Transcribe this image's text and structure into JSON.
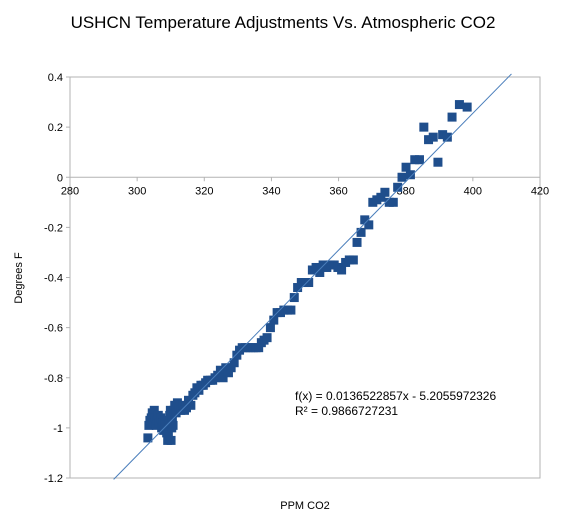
{
  "chart_data": {
    "type": "scatter",
    "title": "USHCN Temperature Adjustments Vs. Atmospheric CO2",
    "xlabel": "PPM CO2",
    "ylabel": "Degrees F",
    "xlim": [
      280,
      420
    ],
    "ylim": [
      -1.2,
      0.4
    ],
    "x_ticks": [
      280,
      300,
      320,
      340,
      360,
      380,
      400,
      420
    ],
    "y_ticks": [
      -1.2,
      -1,
      -0.8,
      -0.6,
      -0.4,
      -0.2,
      0,
      0.2,
      0.4
    ],
    "x_tick_labels": [
      "280",
      "300",
      "320",
      "340",
      "360",
      "380",
      "400",
      "420"
    ],
    "y_tick_labels": [
      "-1.2",
      "-1",
      "-0.8",
      "-0.6",
      "-0.4",
      "-0.2",
      "0",
      "0.2",
      "0.4"
    ],
    "x_axis_crosses_at_y": 0,
    "grid": false,
    "legend": "none",
    "marker": "square",
    "marker_color": "#1f4e8c",
    "trendline_color": "#4a7ebb",
    "trendline": {
      "slope": 0.0136522857,
      "intercept": -5.2055972326,
      "x_range": [
        293,
        411.5
      ]
    },
    "annotations": {
      "equation": "f(x) = 0.0136522857x - 5.2055972326",
      "r_squared": "R² = 0.9866727231"
    },
    "series": [
      {
        "points": [
          [
            303.2,
            -1.04
          ],
          [
            303.5,
            -0.99
          ],
          [
            303.8,
            -0.97
          ],
          [
            304.2,
            -0.96
          ],
          [
            304.5,
            -0.94
          ],
          [
            304.8,
            -0.98
          ],
          [
            305.1,
            -0.93
          ],
          [
            305.4,
            -0.96
          ],
          [
            305.7,
            -0.99
          ],
          [
            306.0,
            -0.97
          ],
          [
            306.3,
            -0.95
          ],
          [
            306.6,
            -0.98
          ],
          [
            307.0,
            -0.96
          ],
          [
            307.3,
            -1.0
          ],
          [
            307.6,
            -0.98
          ],
          [
            307.9,
            -1.01
          ],
          [
            308.2,
            -0.97
          ],
          [
            308.5,
            -0.99
          ],
          [
            308.8,
            -1.02
          ],
          [
            309.1,
            -1.05
          ],
          [
            309.3,
            -1.03
          ],
          [
            309.5,
            -0.98
          ],
          [
            309.7,
            -0.95
          ],
          [
            309.9,
            -0.93
          ],
          [
            310.1,
            -1.05
          ],
          [
            310.3,
            -1.0
          ],
          [
            310.5,
            -0.96
          ],
          [
            310.7,
            -0.99
          ],
          [
            310.9,
            -0.93
          ],
          [
            311.2,
            -0.91
          ],
          [
            311.6,
            -0.94
          ],
          [
            312.0,
            -0.9
          ],
          [
            312.5,
            -0.92
          ],
          [
            313.0,
            -0.93
          ],
          [
            313.6,
            -0.91
          ],
          [
            314.1,
            -0.93
          ],
          [
            314.7,
            -0.92
          ],
          [
            315.3,
            -0.89
          ],
          [
            316.0,
            -0.91
          ],
          [
            316.6,
            -0.87
          ],
          [
            317.2,
            -0.86
          ],
          [
            317.8,
            -0.84
          ],
          [
            318.4,
            -0.85
          ],
          [
            319.0,
            -0.83
          ],
          [
            319.7,
            -0.83
          ],
          [
            320.4,
            -0.82
          ],
          [
            321.0,
            -0.81
          ],
          [
            321.8,
            -0.81
          ],
          [
            322.5,
            -0.81
          ],
          [
            323.2,
            -0.8
          ],
          [
            324.0,
            -0.79
          ],
          [
            324.8,
            -0.77
          ],
          [
            325.6,
            -0.8
          ],
          [
            326.4,
            -0.76
          ],
          [
            327.2,
            -0.78
          ],
          [
            328.0,
            -0.76
          ],
          [
            328.9,
            -0.74
          ],
          [
            329.7,
            -0.71
          ],
          [
            330.5,
            -0.69
          ],
          [
            331.3,
            -0.68
          ],
          [
            332.2,
            -0.68
          ],
          [
            333.0,
            -0.68
          ],
          [
            333.8,
            -0.68
          ],
          [
            334.6,
            -0.68
          ],
          [
            335.4,
            -0.68
          ],
          [
            336.2,
            -0.68
          ],
          [
            337.0,
            -0.66
          ],
          [
            337.8,
            -0.65
          ],
          [
            338.7,
            -0.64
          ],
          [
            339.7,
            -0.6
          ],
          [
            340.7,
            -0.57
          ],
          [
            341.7,
            -0.54
          ],
          [
            342.7,
            -0.54
          ],
          [
            343.7,
            -0.53
          ],
          [
            344.8,
            -0.53
          ],
          [
            345.8,
            -0.53
          ],
          [
            346.8,
            -0.48
          ],
          [
            347.8,
            -0.44
          ],
          [
            348.9,
            -0.42
          ],
          [
            350.0,
            -0.42
          ],
          [
            351.1,
            -0.42
          ],
          [
            352.2,
            -0.37
          ],
          [
            353.3,
            -0.36
          ],
          [
            354.4,
            -0.38
          ],
          [
            355.4,
            -0.35
          ],
          [
            356.5,
            -0.36
          ],
          [
            357.6,
            -0.35
          ],
          [
            358.7,
            -0.35
          ],
          [
            359.8,
            -0.36
          ],
          [
            360.9,
            -0.37
          ],
          [
            362.1,
            -0.34
          ],
          [
            363.2,
            -0.33
          ],
          [
            364.4,
            -0.33
          ],
          [
            365.5,
            -0.26
          ],
          [
            366.7,
            -0.22
          ],
          [
            367.8,
            -0.17
          ],
          [
            369.0,
            -0.19
          ],
          [
            370.2,
            -0.1
          ],
          [
            371.4,
            -0.09
          ],
          [
            372.6,
            -0.08
          ],
          [
            373.8,
            -0.06
          ],
          [
            375.1,
            -0.1
          ],
          [
            376.3,
            -0.1
          ],
          [
            377.6,
            -0.04
          ],
          [
            378.9,
            0.0
          ],
          [
            380.1,
            0.04
          ],
          [
            381.4,
            0.01
          ],
          [
            382.7,
            0.07
          ],
          [
            384.1,
            0.07
          ],
          [
            385.4,
            0.2
          ],
          [
            386.8,
            0.15
          ],
          [
            388.2,
            0.16
          ],
          [
            389.6,
            0.06
          ],
          [
            391.0,
            0.17
          ],
          [
            392.4,
            0.16
          ],
          [
            393.8,
            0.24
          ],
          [
            396.0,
            0.29
          ],
          [
            398.3,
            0.28
          ]
        ]
      }
    ]
  }
}
